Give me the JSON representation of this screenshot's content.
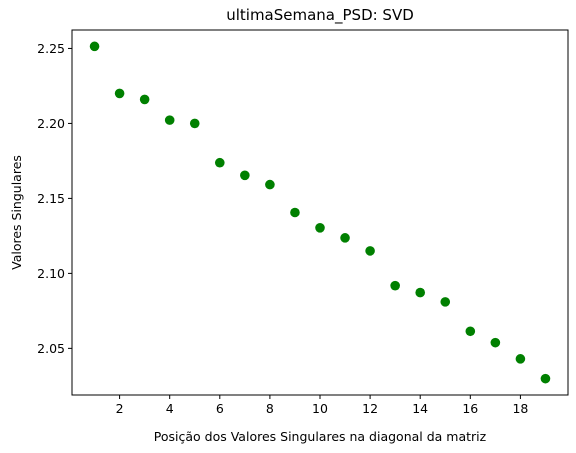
{
  "chart_data": {
    "type": "scatter",
    "title": "ultimaSemana_PSD: SVD",
    "xlabel": "Posição dos Valores Singulares na diagonal da matriz",
    "ylabel": "Valores Singulares",
    "xlim": [
      0.1,
      19.9
    ],
    "ylim": [
      2.0189,
      2.2623
    ],
    "xticks": [
      2,
      4,
      6,
      8,
      10,
      12,
      14,
      16,
      18
    ],
    "yticks": [
      2.05,
      2.1,
      2.15,
      2.2,
      2.25
    ],
    "ytick_labels": [
      "2.05",
      "2.10",
      "2.15",
      "2.20",
      "2.25"
    ],
    "grid": false,
    "marker_color": "#008000",
    "series": [
      {
        "x": [
          1,
          2,
          3,
          4,
          5,
          6,
          7,
          8,
          9,
          10,
          11,
          12,
          13,
          14,
          15,
          16,
          17,
          18,
          19
        ],
        "values": [
          2.2514,
          2.22,
          2.216,
          2.2022,
          2.2,
          2.1738,
          2.1654,
          2.1592,
          2.1406,
          2.1304,
          2.1237,
          2.115,
          2.0918,
          2.0872,
          2.081,
          2.0614,
          2.0538,
          2.043,
          2.0298
        ]
      }
    ]
  }
}
